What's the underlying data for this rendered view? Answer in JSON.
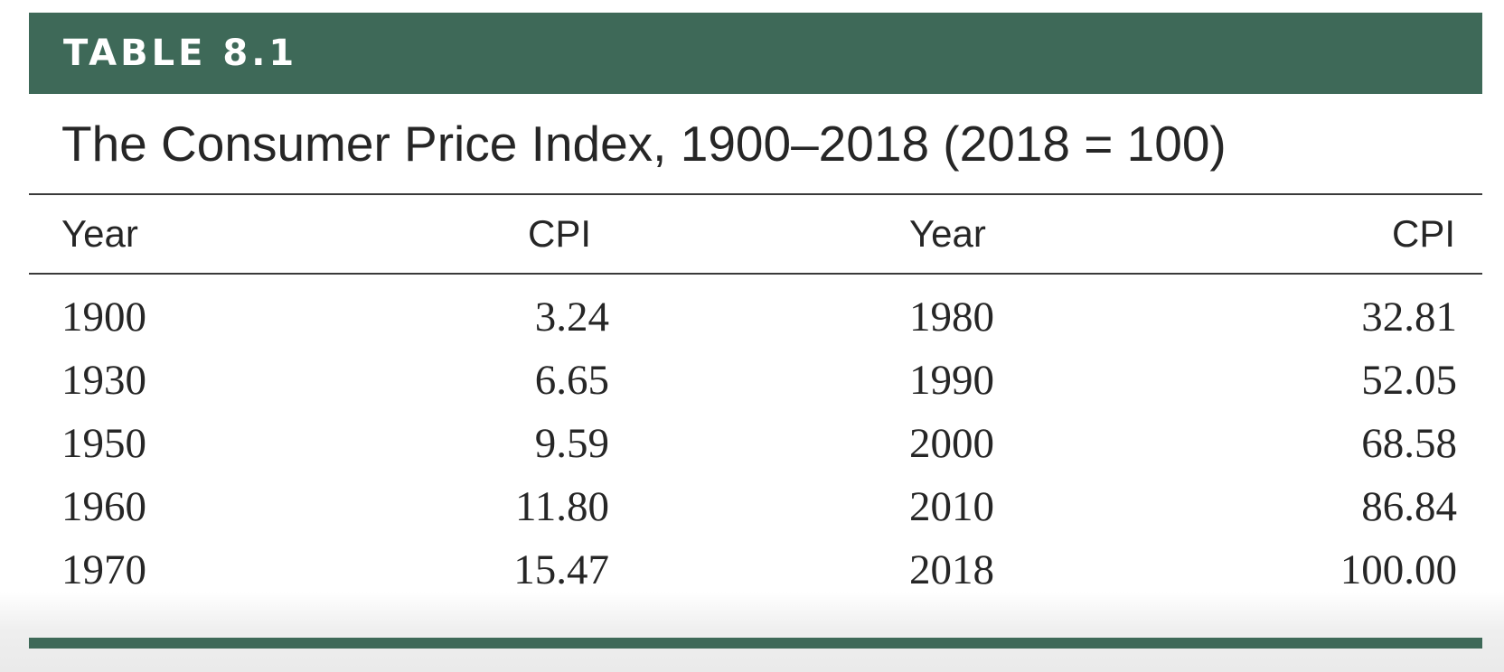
{
  "table": {
    "label": "TABLE 8.1",
    "caption": "The Consumer Price Index, 1900–2018 (2018 = 100)",
    "accent_color": "#3e6958",
    "headers": {
      "year_left": "Year",
      "cpi_left": "CPI",
      "year_right": "Year",
      "cpi_right": "CPI"
    },
    "rows": [
      {
        "year_left": "1900",
        "cpi_left": "3.24",
        "year_right": "1980",
        "cpi_right": "32.81"
      },
      {
        "year_left": "1930",
        "cpi_left": "6.65",
        "year_right": "1990",
        "cpi_right": "52.05"
      },
      {
        "year_left": "1950",
        "cpi_left": "9.59",
        "year_right": "2000",
        "cpi_right": "68.58"
      },
      {
        "year_left": "1960",
        "cpi_left": "11.80",
        "year_right": "2010",
        "cpi_right": "86.84"
      },
      {
        "year_left": "1970",
        "cpi_left": "15.47",
        "year_right": "2018",
        "cpi_right": "100.00"
      }
    ]
  }
}
